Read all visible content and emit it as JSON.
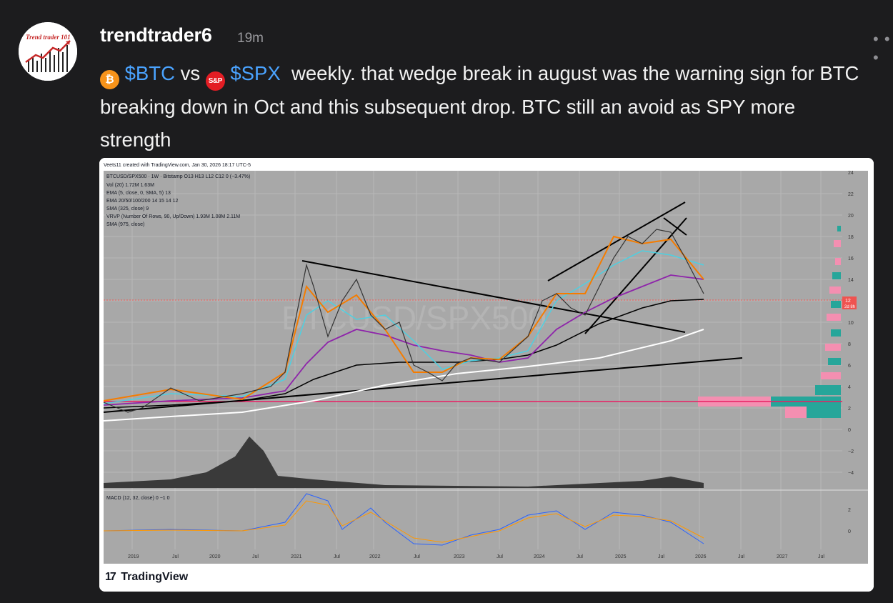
{
  "post": {
    "username": "trendtrader6",
    "time": "19m",
    "avatar_text": "Trend trader 101",
    "more_label": "• • •",
    "ticker_btc": "$BTC",
    "word_vs": "vs",
    "ticker_spx": "$SPX",
    "text_line": "weekly. that wedge break in august was the warning sign for BTC breaking down in Oct and this subsequent drop. BTC still an avoid as SPY more strength",
    "btc_icon_glyph": "₿",
    "spx_icon_glyph": "S&P",
    "icons": [
      "bitcoin-icon",
      "sp500-icon",
      "more-options-icon"
    ]
  },
  "chart": {
    "created_with": "Veets11 created with TradingView.com, Jan 30, 2026 18:17 UTC-5",
    "symbol_line": "BTCUSD/SPX500 · 1W · Bitstamp  O13  H13  L12  C12  0 (−3.47%)",
    "legend": [
      "Vol (20)  1.72M  1.63M",
      "EMA (5, close, 0, SMA, 5)  13",
      "EMA 20/50/100/200  14  15  14  12",
      "SMA (325, close)  9",
      "VRVP (Number Of Rows, 90, Up/Down)  1.93M  1.08M  2.11M",
      "SMA (975, close)"
    ],
    "watermark": "BTCUSD/SPX500",
    "macd_label": "MACD (12, 32, close)  0  −1  0",
    "price_axis": [
      "24",
      "22",
      "20",
      "18",
      "16",
      "14",
      "12",
      "10",
      "8",
      "6",
      "4",
      "2",
      "0",
      "−2",
      "−4"
    ],
    "macd_axis": [
      "2",
      "0"
    ],
    "last_price_badge": "12",
    "last_price_sub": "2d 8h",
    "x_labels": [
      "2019",
      "Jul",
      "2020",
      "Jul",
      "2021",
      "Jul",
      "2022",
      "Jul",
      "2023",
      "Jul",
      "2024",
      "Jul",
      "2025",
      "Jul",
      "2026",
      "Jul",
      "2027",
      "Jul"
    ],
    "footer_brand": "TradingView",
    "footer_mark": "17",
    "colors": {
      "up": "#26a69a",
      "down": "#ef5350",
      "ema_orange": "#f57c00",
      "ema_cyan": "#4dd0e1",
      "ema_purple": "#8e24aa",
      "sma_white": "#ffffff",
      "vrvp_up": "#26a69a",
      "vrvp_down": "#f48fb1"
    }
  }
}
